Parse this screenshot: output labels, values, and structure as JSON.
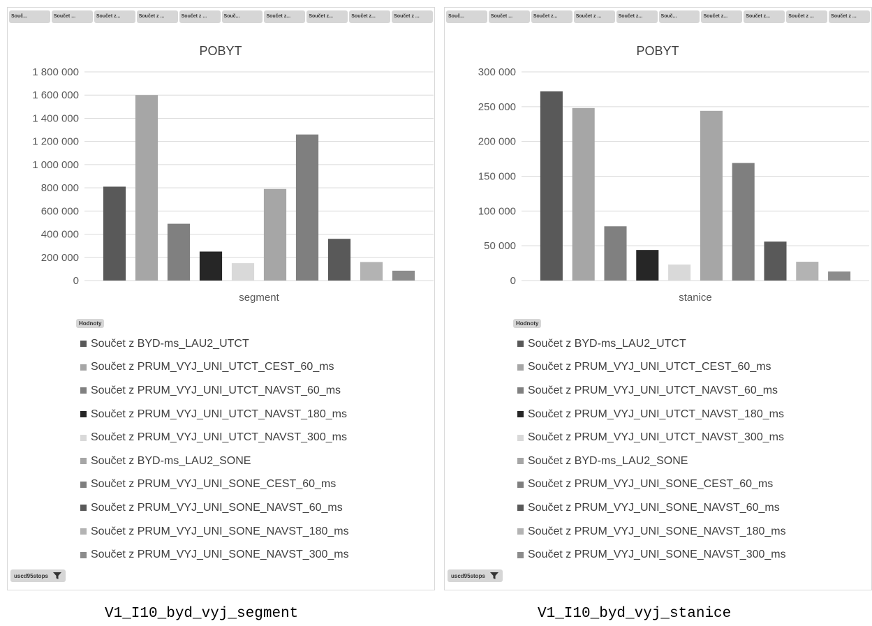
{
  "colors": {
    "series": [
      "#595959",
      "#a6a6a6",
      "#808080",
      "#262626",
      "#d9d9d9",
      "#a6a6a6",
      "#7f7f7f",
      "#595959",
      "#b3b3b3",
      "#8c8c8c"
    ],
    "gridline": "#d9d9d9",
    "button_bg": "#d6d6d6"
  },
  "panels": [
    {
      "tabs": [
        "Souč...",
        "Součet ...",
        "Součet z...",
        "Součet z ...",
        "Součet z ...",
        "Souč...",
        "Součet z...",
        "Součet z...",
        "Součet z...",
        "Součet z ..."
      ],
      "values_label": "Hodnoty",
      "filter_label": "uscd95stops",
      "caption": "V1_I10_byd_vyj_segment"
    },
    {
      "tabs": [
        "Souč...",
        "Součet ...",
        "Součet z...",
        "Součet z ...",
        "Součet z...",
        "Souč...",
        "Součet z...",
        "Součet z...",
        "Součet z ...",
        "Součet z ..."
      ],
      "values_label": "Hodnoty",
      "filter_label": "uscd95stops",
      "caption": "V1_I10_byd_vyj_stanice"
    }
  ],
  "chart_data": [
    {
      "type": "bar",
      "title": "POBYT",
      "categories": [
        "segment"
      ],
      "xlabel": "",
      "ylabel": "",
      "ylim": [
        0,
        1800000
      ],
      "yticks": [
        0,
        200000,
        400000,
        600000,
        800000,
        1000000,
        1200000,
        1400000,
        1600000,
        1800000
      ],
      "ytick_labels": [
        "0",
        "200 000",
        "400 000",
        "600 000",
        "800 000",
        "1 000 000",
        "1 200 000",
        "1 400 000",
        "1 600 000",
        "1 800 000"
      ],
      "grid": true,
      "legend_position": "bottom",
      "series": [
        {
          "name": "Součet z BYD-ms_LAU2_UTCT",
          "values": [
            810000
          ]
        },
        {
          "name": "Součet z PRUM_VYJ_UNI_UTCT_CEST_60_ms",
          "values": [
            1600000
          ]
        },
        {
          "name": "Součet z PRUM_VYJ_UNI_UTCT_NAVST_60_ms",
          "values": [
            490000
          ]
        },
        {
          "name": "Součet z PRUM_VYJ_UNI_UTCT_NAVST_180_ms",
          "values": [
            250000
          ]
        },
        {
          "name": "Součet z PRUM_VYJ_UNI_UTCT_NAVST_300_ms",
          "values": [
            150000
          ]
        },
        {
          "name": "Součet z BYD-ms_LAU2_SONE",
          "values": [
            790000
          ]
        },
        {
          "name": "Součet z PRUM_VYJ_UNI_SONE_CEST_60_ms",
          "values": [
            1260000
          ]
        },
        {
          "name": "Součet z PRUM_VYJ_UNI_SONE_NAVST_60_ms",
          "values": [
            360000
          ]
        },
        {
          "name": "Součet z PRUM_VYJ_UNI_SONE_NAVST_180_ms",
          "values": [
            160000
          ]
        },
        {
          "name": "Součet z PRUM_VYJ_UNI_SONE_NAVST_300_ms",
          "values": [
            85000
          ]
        }
      ]
    },
    {
      "type": "bar",
      "title": "POBYT",
      "categories": [
        "stanice"
      ],
      "xlabel": "",
      "ylabel": "",
      "ylim": [
        0,
        300000
      ],
      "yticks": [
        0,
        50000,
        100000,
        150000,
        200000,
        250000,
        300000
      ],
      "ytick_labels": [
        "0",
        "50 000",
        "100 000",
        "150 000",
        "200 000",
        "250 000",
        "300 000"
      ],
      "grid": true,
      "legend_position": "bottom",
      "series": [
        {
          "name": "Součet z BYD-ms_LAU2_UTCT",
          "values": [
            272000
          ]
        },
        {
          "name": "Součet z PRUM_VYJ_UNI_UTCT_CEST_60_ms",
          "values": [
            248000
          ]
        },
        {
          "name": "Součet z PRUM_VYJ_UNI_UTCT_NAVST_60_ms",
          "values": [
            78000
          ]
        },
        {
          "name": "Součet z PRUM_VYJ_UNI_UTCT_NAVST_180_ms",
          "values": [
            44000
          ]
        },
        {
          "name": "Součet z PRUM_VYJ_UNI_UTCT_NAVST_300_ms",
          "values": [
            23000
          ]
        },
        {
          "name": "Součet z BYD-ms_LAU2_SONE",
          "values": [
            244000
          ]
        },
        {
          "name": "Součet z PRUM_VYJ_UNI_SONE_CEST_60_ms",
          "values": [
            169000
          ]
        },
        {
          "name": "Součet z PRUM_VYJ_UNI_SONE_NAVST_60_ms",
          "values": [
            56000
          ]
        },
        {
          "name": "Součet z PRUM_VYJ_UNI_SONE_NAVST_180_ms",
          "values": [
            27000
          ]
        },
        {
          "name": "Součet z PRUM_VYJ_UNI_SONE_NAVST_300_ms",
          "values": [
            13000
          ]
        }
      ]
    }
  ]
}
